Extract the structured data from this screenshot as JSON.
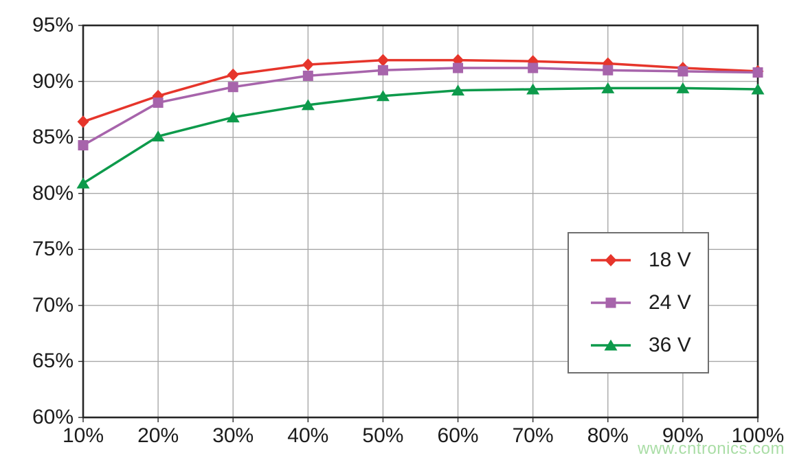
{
  "figure": {
    "background": "#ffffff",
    "text_color": "#1c1c1c"
  },
  "watermark": {
    "text": "www.cntronics.com",
    "color": "#55bd4d"
  },
  "chart_data": {
    "type": "line",
    "title": "",
    "xlabel": "",
    "ylabel": "",
    "x_description": "output load percentage",
    "y_description": "efficiency percentage",
    "x": [
      10,
      20,
      30,
      40,
      50,
      60,
      70,
      80,
      90,
      100
    ],
    "x_tick_labels": [
      "10%",
      "20%",
      "30%",
      "40%",
      "50%",
      "60%",
      "70%",
      "80%",
      "90%",
      "100%"
    ],
    "xlim": [
      10,
      100
    ],
    "y_ticks": [
      60,
      65,
      70,
      75,
      80,
      85,
      90,
      95
    ],
    "y_tick_labels": [
      "60%",
      "65%",
      "70%",
      "75%",
      "80%",
      "85%",
      "90%",
      "95%"
    ],
    "ylim": [
      60,
      95
    ],
    "grid": true,
    "grid_color": "#a8a8a8",
    "axis_color": "#262626",
    "legend_position": "inside right, boxed",
    "series": [
      {
        "name": "18 V",
        "color": "#e6352b",
        "marker": "diamond",
        "values": [
          86.4,
          88.7,
          90.6,
          91.5,
          91.9,
          91.9,
          91.8,
          91.6,
          91.2,
          90.9
        ]
      },
      {
        "name": "24 V",
        "color": "#a764ab",
        "marker": "square",
        "values": [
          84.3,
          88.1,
          89.5,
          90.5,
          91.0,
          91.2,
          91.2,
          91.0,
          90.9,
          90.8
        ]
      },
      {
        "name": "36 V",
        "color": "#0d9a4b",
        "marker": "triangle",
        "values": [
          80.9,
          85.1,
          86.8,
          87.9,
          88.7,
          89.2,
          89.3,
          89.4,
          89.4,
          89.3
        ]
      }
    ]
  }
}
